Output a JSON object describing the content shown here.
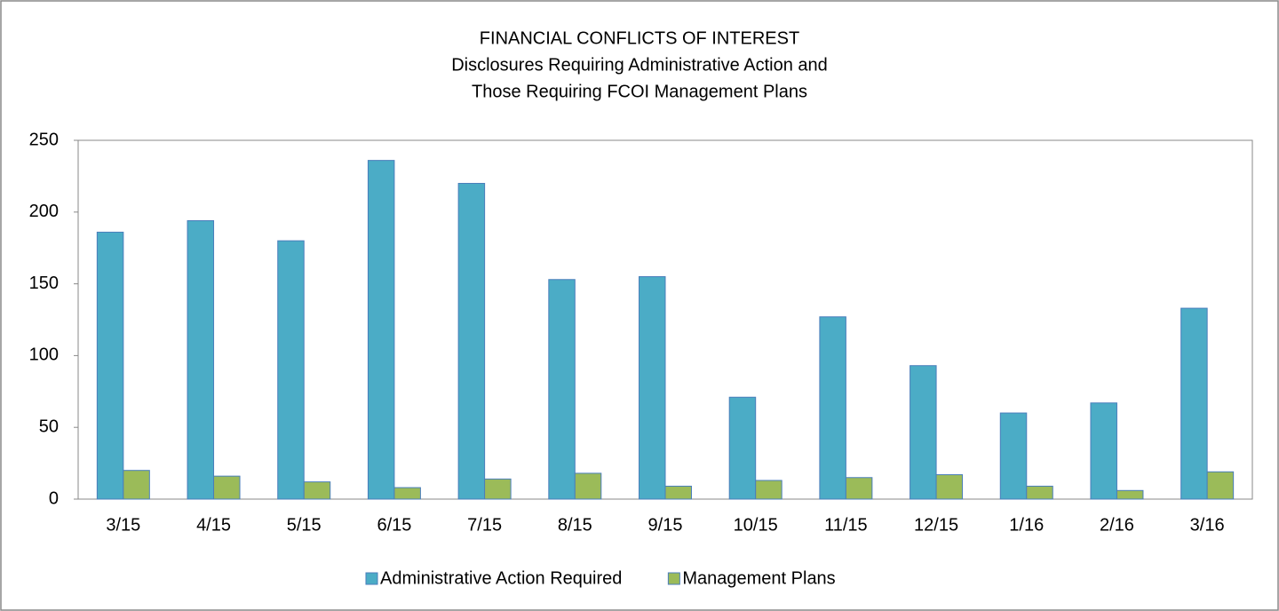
{
  "chart_data": {
    "type": "bar",
    "title": "FINANCIAL CONFLICTS OF INTEREST",
    "subtitle": [
      "Disclosures Requiring Administrative Action and",
      "Those Requiring FCOI Management Plans"
    ],
    "categories": [
      "3/15",
      "4/15",
      "5/15",
      "6/15",
      "7/15",
      "8/15",
      "9/15",
      "10/15",
      "11/15",
      "12/15",
      "1/16",
      "2/16",
      "3/16"
    ],
    "series": [
      {
        "name": "Administrative Action Required",
        "color": "#4bacc6",
        "values": [
          186,
          194,
          180,
          236,
          220,
          153,
          155,
          71,
          127,
          93,
          60,
          67,
          133
        ]
      },
      {
        "name": "Management Plans",
        "color": "#9bbb59",
        "values": [
          20,
          16,
          12,
          8,
          14,
          18,
          9,
          13,
          15,
          17,
          9,
          6,
          19
        ]
      }
    ],
    "ylim": [
      0,
      250
    ],
    "yticks": [
      0,
      50,
      100,
      150,
      200,
      250
    ],
    "grid": false,
    "legend": "bottom"
  }
}
